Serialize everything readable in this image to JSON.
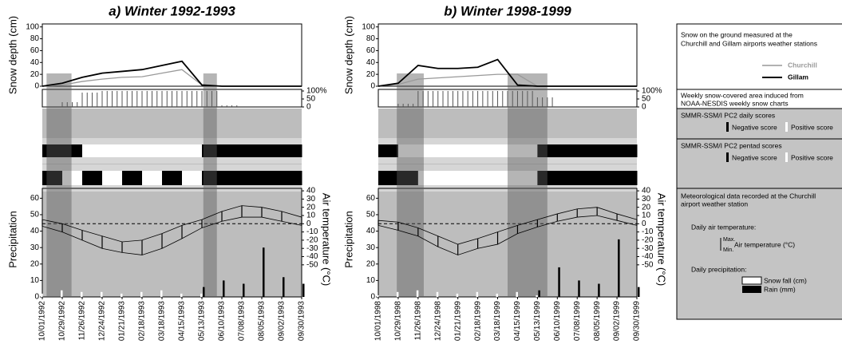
{
  "chart_data": [
    {
      "type": "snow-climate",
      "title": "a) Winter 1992-1993",
      "categories": [
        "10/01/1992",
        "10/29/1992",
        "11/26/1992",
        "12/24/1992",
        "01/21/1993",
        "02/18/1993",
        "03/18/1993",
        "04/15/1993",
        "05/13/1993",
        "06/10/1993",
        "07/08/1993",
        "08/05/1993",
        "09/02/1993",
        "09/30/1993"
      ],
      "shaded_spans": [
        [
          "10/07/1992",
          "11/11/1992"
        ],
        [
          "05/15/1993",
          "06/03/1993"
        ]
      ],
      "snow_depth": {
        "y_label": "Snow depth (cm)",
        "ylim": [
          0,
          105
        ],
        "yticks": [
          0,
          20,
          40,
          60,
          80,
          100
        ],
        "series": [
          {
            "name": "Churchill",
            "color": "#999999",
            "values": [
              0,
              2,
              8,
              12,
              15,
              16,
              22,
              28,
              2,
              0,
              0,
              0,
              0,
              0
            ]
          },
          {
            "name": "Gillam",
            "color": "#000000",
            "values": [
              0,
              5,
              15,
              22,
              25,
              28,
              35,
              42,
              2,
              0,
              0,
              0,
              0,
              0
            ]
          }
        ]
      },
      "snow_cover": {
        "ylim": [
          0,
          100
        ],
        "yticks": [
          {
            "value": 100,
            "label": "100%"
          },
          50,
          0
        ],
        "values": [
          0,
          30,
          90,
          100,
          100,
          100,
          100,
          100,
          100,
          10,
          0,
          0,
          0,
          0
        ]
      },
      "pc2_daily": {
        "values": [
          -1,
          -1,
          1,
          1,
          1,
          1,
          1,
          1,
          -1,
          -1,
          -1,
          -1,
          -1,
          -1
        ]
      },
      "pc2_pentad": {
        "values": [
          -1,
          1,
          -1,
          1,
          -1,
          1,
          -1,
          1,
          -1,
          -1,
          -1,
          -1,
          -1,
          -1
        ]
      },
      "meteo": {
        "y_label": "Precipitation",
        "ylim": [
          0,
          66
        ],
        "yticks": [
          0,
          10,
          20,
          30,
          40,
          50,
          60
        ],
        "y2_label": "Air temperature (°C)",
        "y2lim": [
          -89,
          43
        ],
        "y2ticks": [
          40,
          30,
          20,
          10,
          0,
          -10,
          -20,
          -30,
          -40,
          -50
        ],
        "y2_reference": 0,
        "temp_max": {
          "color": "#000000",
          "values": [
            5,
            0,
            -8,
            -15,
            -22,
            -20,
            -12,
            -2,
            5,
            15,
            22,
            20,
            15,
            8
          ]
        },
        "temp_min": {
          "color": "#000000",
          "values": [
            -3,
            -10,
            -20,
            -30,
            -35,
            -38,
            -30,
            -18,
            -5,
            3,
            8,
            8,
            3,
            -2
          ]
        },
        "snowfall": {
          "color": "#ffffff",
          "values": [
            2,
            4,
            3,
            3,
            2,
            3,
            4,
            2,
            2,
            0,
            0,
            0,
            0,
            0
          ]
        },
        "rain": {
          "color": "#000000",
          "values": [
            0,
            0,
            0,
            0,
            0,
            0,
            0,
            0,
            6,
            10,
            8,
            30,
            12,
            8
          ]
        }
      }
    },
    {
      "type": "snow-climate",
      "title": "b) Winter 1998-1999",
      "categories": [
        "10/01/1998",
        "10/29/1998",
        "11/26/1998",
        "12/24/1998",
        "01/21/1999",
        "02/18/1999",
        "03/18/1999",
        "04/15/1999",
        "05/13/1999",
        "06/10/1999",
        "07/08/1999",
        "08/05/1999",
        "09/02/1999",
        "09/30/1999"
      ],
      "shaded_spans": [
        [
          "10/27/1998",
          "12/04/1998"
        ],
        [
          "04/01/1999",
          "05/27/1999"
        ]
      ],
      "snow_depth": {
        "y_label": "Snow depth (cm)",
        "ylim": [
          0,
          105
        ],
        "yticks": [
          0,
          20,
          40,
          60,
          80,
          100
        ],
        "series": [
          {
            "color": "#999999",
            "values": [
              0,
              3,
              12,
              14,
              16,
              18,
              20,
              20,
              0,
              0,
              0,
              0,
              0,
              0
            ]
          },
          {
            "color": "#000000",
            "values": [
              0,
              5,
              35,
              30,
              30,
              32,
              45,
              2,
              0,
              0,
              0,
              0,
              0,
              0
            ]
          }
        ]
      },
      "snow_cover": {
        "ylim": [
          0,
          100
        ],
        "yticks": [
          {
            "value": 100,
            "label": "100%"
          },
          50,
          0
        ],
        "values": [
          0,
          20,
          100,
          100,
          100,
          100,
          100,
          100,
          60,
          0,
          0,
          0,
          0,
          0
        ]
      },
      "pc2_daily": {
        "values": [
          -1,
          1,
          1,
          1,
          1,
          1,
          1,
          1,
          -1,
          -1,
          -1,
          -1,
          -1,
          -1
        ]
      },
      "pc2_pentad": {
        "values": [
          -1,
          -1,
          1,
          1,
          1,
          1,
          1,
          1,
          -1,
          -1,
          -1,
          -1,
          -1,
          -1
        ]
      },
      "meteo": {
        "y_label": "Precipitation",
        "ylim": [
          0,
          66
        ],
        "yticks": [
          0,
          10,
          20,
          30,
          40,
          50,
          60
        ],
        "y2_label": "Air temperature (°C)",
        "y2lim": [
          -89,
          43
        ],
        "y2ticks": [
          40,
          30,
          20,
          10,
          0,
          -10,
          -20,
          -30,
          -40,
          -50
        ],
        "y2_reference": 0,
        "temp_max": {
          "color": "#000000",
          "values": [
            4,
            2,
            -5,
            -15,
            -25,
            -18,
            -10,
            -2,
            5,
            12,
            18,
            20,
            12,
            5
          ]
        },
        "temp_min": {
          "color": "#000000",
          "values": [
            -2,
            -8,
            -15,
            -28,
            -38,
            -30,
            -25,
            -12,
            -4,
            3,
            8,
            10,
            4,
            -2
          ]
        },
        "snowfall": {
          "color": "#ffffff",
          "values": [
            1,
            3,
            4,
            3,
            2,
            3,
            2,
            3,
            1,
            0,
            0,
            0,
            0,
            0
          ]
        },
        "rain": {
          "color": "#000000",
          "values": [
            0,
            0,
            0,
            0,
            0,
            0,
            0,
            0,
            4,
            18,
            10,
            8,
            35,
            6
          ]
        }
      }
    }
  ],
  "legend_panel": {
    "snow_title_1": "Snow on the ground measured at the",
    "snow_title_2": "Churchill and Gillam airports weather stations",
    "cover_title_1": "Weekly snow-covered area induced from",
    "cover_title_2": "NOAA-NESDIS weekly snow charts",
    "daily_title": "SMMR-SSM/I PC2 daily scores",
    "pentad_title": "SMMR-SSM/I PC2 pentad scores",
    "negative": "Negative score",
    "positive": "Positive score",
    "meteo_title_1": "Meteorological data recorded at the Churchill",
    "meteo_title_2": "airport weather station",
    "temp_title": "Daily air temperature:",
    "max": "Max.",
    "min": "Min.",
    "temp_unit": "Air temperature (°C)",
    "precip_title": "Daily precipitation:",
    "snowfall": "Snow fall (cm)",
    "rain": "Rain (mm)"
  }
}
